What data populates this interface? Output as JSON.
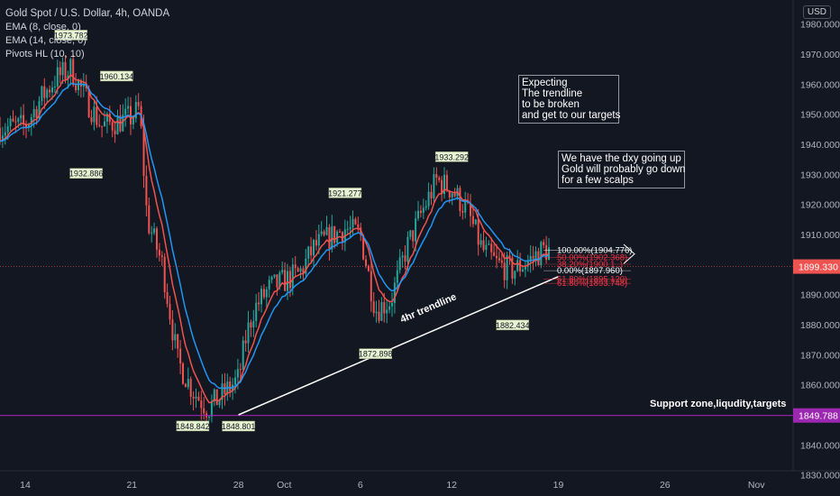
{
  "legend": {
    "title": "Gold Spot / U.S. Dollar, 4h, OANDA",
    "ema8": "EMA (8, close, 0)",
    "ema14": "EMA (14, close, 0)",
    "pivots": "Pivots HL (10, 10)"
  },
  "currency_button": "USD",
  "notes": {
    "expecting": "Expecting\nThe trendline\nto be broken\nand get to our targets",
    "dxy": "We have the dxy going up\nGold will probably go down\nfor a few scalps"
  },
  "support_label": "Support zone,liqudity,targets",
  "trendline_label": "4hr trendline",
  "colors": {
    "background": "#131722",
    "up_candle": "#26a69a",
    "down_candle": "#ef5350",
    "ema8": "#ef5350",
    "ema14": "#2196f3",
    "support_line": "#9c27b0",
    "trendline": "#ffffff",
    "fib_label": "#f23645"
  },
  "chart_data": {
    "type": "candlestick",
    "title": "Gold Spot / U.S. Dollar, 4h, OANDA",
    "ylim": [
      1823,
      1988
    ],
    "y_ticks": [
      1830,
      1840,
      1850,
      1860,
      1870,
      1880,
      1890,
      1900,
      1910,
      1920,
      1930,
      1940,
      1950,
      1960,
      1970,
      1980
    ],
    "y_tick_labels": [
      "1830.000",
      "1840.000",
      "1850.000",
      "1860.000",
      "1870.000",
      "1880.000",
      "1890.000",
      "1900.000",
      "1910.000",
      "1920.000",
      "1930.000",
      "1940.000",
      "1950.000",
      "1960.000",
      "1970.000",
      "1980.000"
    ],
    "x_tick_labels": [
      {
        "label": "14",
        "at": "2020-09-14"
      },
      {
        "label": "21",
        "at": "2020-09-21"
      },
      {
        "label": "28",
        "at": "2020-09-28"
      },
      {
        "label": "Oct",
        "at": "2020-10-01"
      },
      {
        "label": "6",
        "at": "2020-10-06"
      },
      {
        "label": "12",
        "at": "2020-10-12"
      },
      {
        "label": "19",
        "at": "2020-10-19"
      },
      {
        "label": "26",
        "at": "2020-10-26"
      },
      {
        "label": "Nov",
        "at": "2020-11-01"
      }
    ],
    "close_path": [
      [
        "2020-09-11",
        1945
      ],
      [
        "2020-09-14",
        1946
      ],
      [
        "2020-09-15",
        1955
      ],
      [
        "2020-09-16",
        1962
      ],
      [
        "2020-09-17",
        1965
      ],
      [
        "2020-09-18",
        1955
      ],
      [
        "2020-09-19",
        1946
      ],
      [
        "2020-09-21",
        1949
      ],
      [
        "2020-09-21.5",
        1952
      ],
      [
        "2020-09-22",
        1915
      ],
      [
        "2020-09-23",
        1900
      ],
      [
        "2020-09-24",
        1868
      ],
      [
        "2020-09-25",
        1858
      ],
      [
        "2020-09-26",
        1852
      ],
      [
        "2020-09-28",
        1862
      ],
      [
        "2020-09-28.5",
        1876
      ],
      [
        "2020-09-29",
        1885
      ],
      [
        "2020-09-30",
        1892
      ],
      [
        "2020-10-02",
        1897
      ],
      [
        "2020-10-03",
        1906
      ],
      [
        "2020-10-05",
        1912
      ],
      [
        "2020-10-06",
        1910
      ],
      [
        "2020-10-07",
        1885
      ],
      [
        "2020-10-08",
        1888
      ],
      [
        "2020-10-09",
        1905
      ],
      [
        "2020-10-10",
        1917
      ],
      [
        "2020-10-11",
        1928
      ],
      [
        "2020-10-12",
        1925
      ],
      [
        "2020-10-13",
        1918
      ],
      [
        "2020-10-14",
        1905
      ],
      [
        "2020-10-15",
        1900
      ],
      [
        "2020-10-16",
        1898
      ],
      [
        "2020-10-17",
        1901
      ],
      [
        "2020-10-18",
        1905
      ],
      [
        "2020-10-19",
        1904
      ]
    ],
    "current_price": {
      "label": "1899.330",
      "value": 1899.33
    },
    "support": {
      "label": "1849.788",
      "value": 1849.788
    },
    "trendline": {
      "start": [
        "2020-09-28",
        1850
      ],
      "end": [
        "2020-10-19",
        1896
      ]
    },
    "pivots": [
      {
        "label": "1973.782",
        "value": 1973.782,
        "at": "2020-09-17",
        "kind": "high"
      },
      {
        "label": "1960.134",
        "value": 1960.134,
        "at": "2020-09-20",
        "kind": "high"
      },
      {
        "label": "1932.886",
        "value": 1932.886,
        "at": "2020-09-18",
        "kind": "low"
      },
      {
        "label": "1921.277",
        "value": 1921.277,
        "at": "2020-10-05",
        "kind": "high"
      },
      {
        "label": "1933.292",
        "value": 1933.292,
        "at": "2020-10-12",
        "kind": "high"
      },
      {
        "label": "1882.434",
        "value": 1882.434,
        "at": "2020-10-16",
        "kind": "low"
      },
      {
        "label": "1872.898",
        "value": 1872.898,
        "at": "2020-10-07",
        "kind": "low"
      },
      {
        "label": "1848.842",
        "value": 1848.842,
        "at": "2020-09-25",
        "kind": "low"
      },
      {
        "label": "1848.801",
        "value": 1848.801,
        "at": "2020-09-28",
        "kind": "low"
      }
    ],
    "fibonacci": [
      {
        "label": "100.00%(1904.776)",
        "value": 1904.776
      },
      {
        "label": "38.20%(1900.1..)",
        "value": 1900.1
      },
      {
        "label": "50.00%(1902.368)",
        "value": 1902.368
      },
      {
        "label": "0.00%(1897.960)",
        "value": 1897.96
      },
      {
        "label": "61.80%(1895.120)",
        "value": 1895.12
      },
      {
        "label": "61.80%(1893.748)",
        "value": 1893.748
      }
    ]
  }
}
